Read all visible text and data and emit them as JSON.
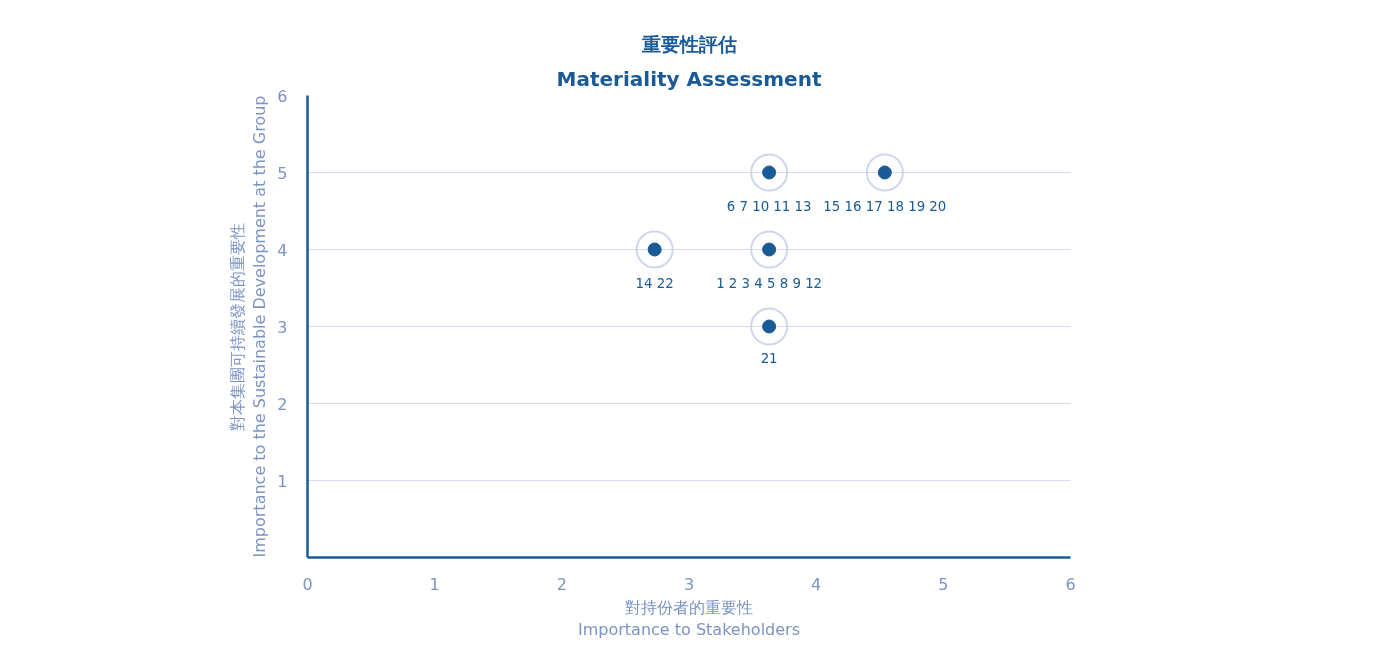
{
  "chart_data": {
    "type": "scatter",
    "title": "重要性評估",
    "subtitle": "Materiality Assessment",
    "xlabel": "對持份者的重要性\nImportance to Stakeholders",
    "ylabel": "對本集團可持續發展的重要性\nImportance to the Sustainable Development at the Group",
    "x": [
      3.63,
      4.54,
      2.73,
      3.63,
      3.63
    ],
    "series": [
      {
        "color": "#1a5a96",
        "values": [
          5,
          5,
          4,
          4,
          3
        ]
      }
    ],
    "annotations": [
      {
        "text": "6 7 10 11 13",
        "x": 3.63,
        "y": 5
      },
      {
        "text": "15 16 17 18 19 20",
        "x": 4.54,
        "y": 5
      },
      {
        "text": "14 22",
        "x": 2.73,
        "y": 4
      },
      {
        "text": "1 2 3 4 5 8 9 12",
        "x": 3.63,
        "y": 4
      },
      {
        "text": "21",
        "x": 3.63,
        "y": 3
      }
    ],
    "xlim": [
      0,
      6
    ],
    "ylim": [
      0,
      6
    ],
    "xticks": [
      0,
      1,
      2,
      3,
      4,
      5,
      6
    ],
    "yticks": [
      1,
      2,
      3,
      4,
      5,
      6
    ],
    "grid": "y",
    "marker": "circle"
  }
}
